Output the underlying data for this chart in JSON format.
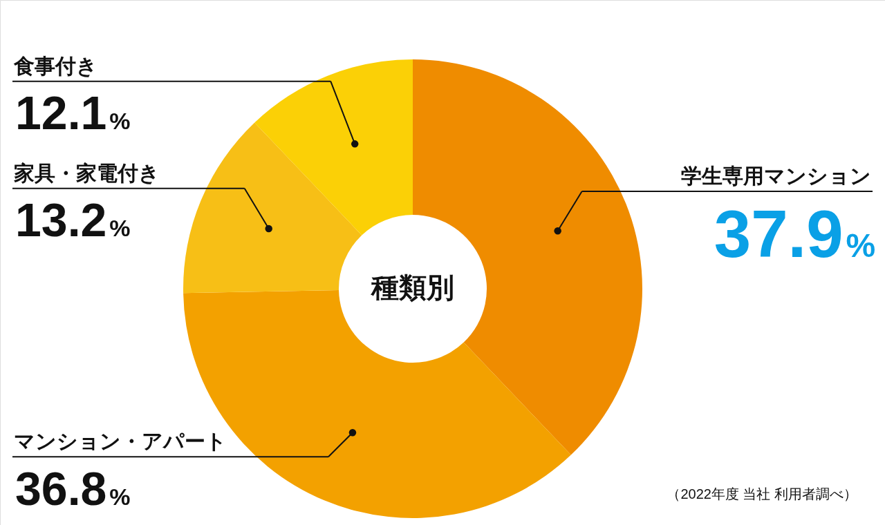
{
  "chart_data": {
    "type": "donut",
    "title": "種類別",
    "categories": [
      "学生専用マンション",
      "マンション・アパート",
      "家具・家電付き",
      "食事付き"
    ],
    "values": [
      37.9,
      36.8,
      13.2,
      12.1
    ],
    "colors": [
      "#ef8c00",
      "#f3a100",
      "#f7bf16",
      "#fbd006"
    ],
    "value_labels": [
      "37.9%",
      "36.8%",
      "13.2%",
      "12.1%"
    ],
    "annotations": [
      "（2022年度 当社 利用者調べ）"
    ]
  }
}
